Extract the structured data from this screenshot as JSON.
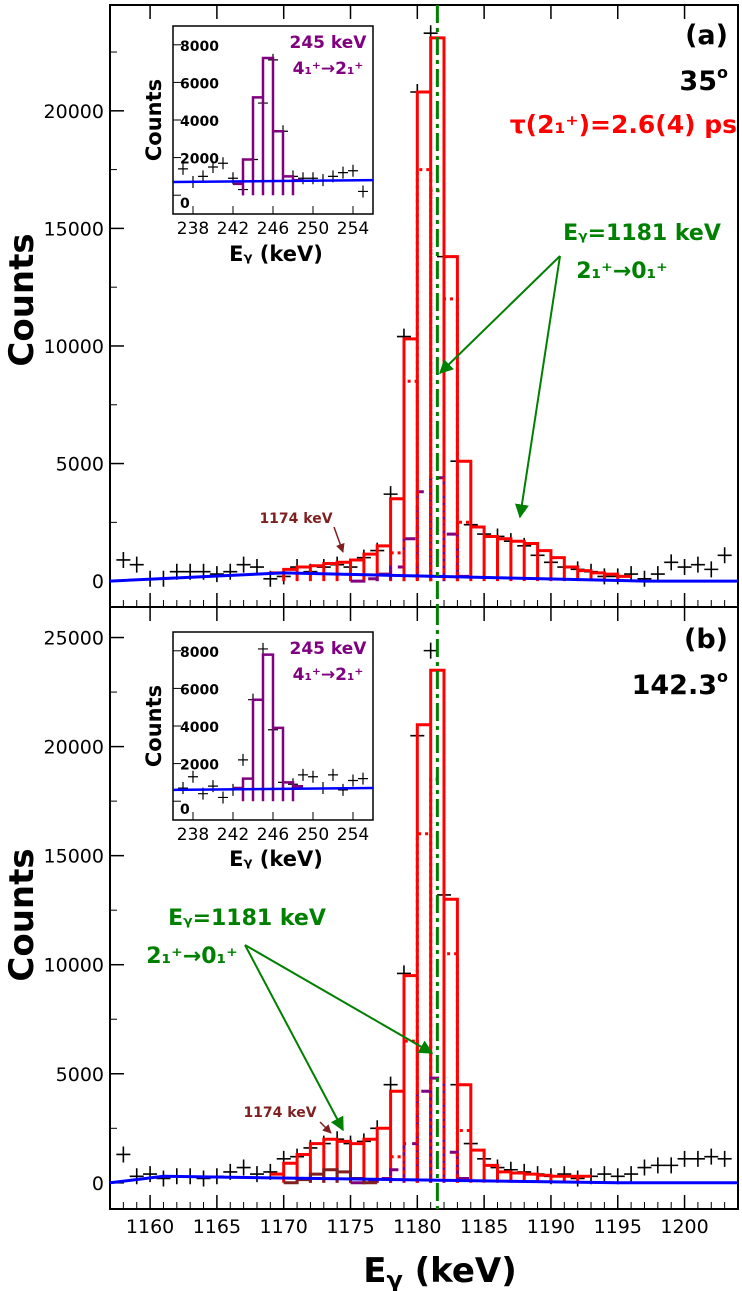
{
  "colors": {
    "data_points": "#000000",
    "total_fit": "#ff0000",
    "peak_component": "#aa0000",
    "full_energy_component": "#800080",
    "background": "#0000ff",
    "centroid_line": "#008000",
    "contaminant": "#7f1f1f"
  },
  "figure": {
    "xlabel_main": "E",
    "xlabel_sub": "γ",
    "xlabel_unit": " (keV)",
    "x_ticks": [
      "1160",
      "1165",
      "1170",
      "1175",
      "1180",
      "1185",
      "1190",
      "1195",
      "1200"
    ]
  },
  "panels": [
    {
      "label": "(a)",
      "angle": "35",
      "lifetime": "τ(2₁⁺)=2.6(4) ps",
      "ylabel": "Counts",
      "y_ticks": [
        "0",
        "5000",
        "10000",
        "15000",
        "20000"
      ],
      "transition_energy": "Eᵧ=1181 keV",
      "transition": "2₁⁺→0₁⁺",
      "contaminant_label": "1174 keV",
      "inset": {
        "ylabel": "Counts",
        "xlabel": "Eᵧ (keV)",
        "y_ticks": [
          "0",
          "2000",
          "4000",
          "6000",
          "8000"
        ],
        "x_ticks": [
          "238",
          "242",
          "246",
          "250",
          "254"
        ],
        "energy": "245 keV",
        "transition": "4₁⁺→2₁⁺"
      }
    },
    {
      "label": "(b)",
      "angle": "142.3",
      "ylabel": "Counts",
      "y_ticks": [
        "0",
        "5000",
        "10000",
        "15000",
        "20000",
        "25000"
      ],
      "transition_energy": "Eᵧ=1181 keV",
      "transition": "2₁⁺→0₁⁺",
      "contaminant_label": "1174 keV",
      "inset": {
        "ylabel": "Counts",
        "xlabel": "Eᵧ (keV)",
        "y_ticks": [
          "0",
          "2000",
          "4000",
          "6000",
          "8000"
        ],
        "x_ticks": [
          "238",
          "242",
          "246",
          "250",
          "254"
        ],
        "energy": "245 keV",
        "transition": "4₁⁺→2₁⁺"
      }
    }
  ],
  "chart_data": [
    {
      "type": "line",
      "panel": "(a)",
      "xlabel": "Eγ (keV)",
      "ylabel": "Counts",
      "xlim": [
        1157,
        1204
      ],
      "ylim": [
        -1100,
        24500
      ],
      "series": [
        {
          "style": "data-points",
          "x": [
            1158,
            1159,
            1160,
            1161,
            1162,
            1163,
            1164,
            1165,
            1166,
            1167,
            1168,
            1169,
            1170,
            1171,
            1172,
            1173,
            1174,
            1175,
            1176,
            1177,
            1178,
            1179,
            1180,
            1181,
            1182,
            1183,
            1184,
            1185,
            1186,
            1187,
            1188,
            1189,
            1190,
            1191,
            1192,
            1193,
            1194,
            1195,
            1196,
            1197,
            1198,
            1199,
            1200,
            1201,
            1202,
            1203
          ],
          "y": [
            900,
            700,
            100,
            100,
            400,
            400,
            400,
            300,
            400,
            700,
            600,
            100,
            200,
            600,
            400,
            600,
            700,
            600,
            1000,
            1300,
            3700,
            10400,
            20800,
            23300,
            13800,
            5100,
            2400,
            2000,
            1900,
            1700,
            1500,
            1100,
            800,
            600,
            500,
            400,
            200,
            200,
            300,
            100,
            300,
            800,
            600,
            700,
            500,
            1100
          ]
        },
        {
          "style": "total-fit",
          "x": [
            1169.5,
            1170.5,
            1171.5,
            1172.5,
            1173.5,
            1174.5,
            1175.5,
            1176.5,
            1177.5,
            1178.5,
            1179.5,
            1180.5,
            1181.5,
            1182.5,
            1183.5,
            1184.5,
            1185.5,
            1186.5,
            1187.5,
            1188.5,
            1189.5,
            1190.5,
            1191.5,
            1192.5,
            1193.5,
            1194.5,
            1195.5
          ],
          "y": [
            350,
            500,
            600,
            650,
            750,
            800,
            900,
            1150,
            1500,
            3500,
            10300,
            20800,
            23100,
            13800,
            5100,
            2300,
            1900,
            1800,
            1700,
            1600,
            1300,
            1000,
            600,
            450,
            350,
            300,
            200
          ]
        },
        {
          "style": "full-energy-dashed",
          "x": [
            1175.5,
            1176.5,
            1177.5,
            1178.5,
            1179.5,
            1180.5,
            1181.5,
            1182.5,
            1183.5
          ],
          "y": [
            0,
            100,
            300,
            600,
            1800,
            3800,
            4400,
            2000,
            200
          ]
        },
        {
          "style": "peak-dotted",
          "x": [
            1178.5,
            1179.5,
            1180.5,
            1181.5,
            1182.5,
            1183.5
          ],
          "y": [
            1200,
            8500,
            17500,
            16600,
            12000,
            2500
          ]
        },
        {
          "style": "background",
          "x": [
            1157,
            1170,
            1197,
            1204
          ],
          "y": [
            0,
            350,
            0,
            0
          ]
        },
        {
          "style": "centroid",
          "x": [
            1181.5
          ]
        }
      ]
    },
    {
      "type": "line",
      "panel": "(b)",
      "xlabel": "Eγ (keV)",
      "ylabel": "Counts",
      "xlim": [
        1157,
        1204
      ],
      "ylim": [
        -1200,
        26400
      ],
      "series": [
        {
          "style": "data-points",
          "x": [
            1158,
            1159,
            1160,
            1161,
            1162,
            1163,
            1164,
            1165,
            1166,
            1167,
            1168,
            1169,
            1170,
            1171,
            1172,
            1173,
            1174,
            1175,
            1176,
            1177,
            1178,
            1179,
            1180,
            1181,
            1182,
            1183,
            1184,
            1185,
            1186,
            1187,
            1188,
            1189,
            1190,
            1191,
            1192,
            1193,
            1194,
            1195,
            1196,
            1197,
            1198,
            1199,
            1200,
            1201,
            1202,
            1203
          ],
          "y": [
            1300,
            300,
            400,
            200,
            300,
            300,
            200,
            300,
            500,
            700,
            400,
            500,
            1100,
            1200,
            1600,
            1800,
            2000,
            1800,
            1900,
            2500,
            4500,
            9600,
            20500,
            24400,
            13200,
            4500,
            1800,
            1100,
            700,
            600,
            500,
            400,
            300,
            400,
            200,
            300,
            400,
            300,
            400,
            700,
            800,
            800,
            1100,
            1100,
            1200,
            1100
          ]
        },
        {
          "style": "total-fit",
          "x": [
            1169.5,
            1170.5,
            1171.5,
            1172.5,
            1173.5,
            1174.5,
            1175.5,
            1176.5,
            1177.5,
            1178.5,
            1179.5,
            1180.5,
            1181.5,
            1182.5,
            1183.5,
            1184.5,
            1185.5,
            1186.5,
            1187.5,
            1188.5,
            1189.5,
            1190.5,
            1191.5,
            1192.5
          ],
          "y": [
            400,
            900,
            1300,
            1800,
            2000,
            1900,
            1800,
            2000,
            2500,
            4200,
            9500,
            21000,
            23500,
            13000,
            4500,
            1500,
            800,
            500,
            450,
            400,
            350,
            300,
            300,
            300
          ]
        },
        {
          "style": "full-energy-dashed",
          "x": [
            1175.5,
            1176.5,
            1177.5,
            1178.5,
            1179.5,
            1180.5,
            1181.5,
            1182.5,
            1183.5
          ],
          "y": [
            0,
            100,
            200,
            600,
            1800,
            4200,
            4800,
            1400,
            200
          ]
        },
        {
          "style": "peak-dotted",
          "x": [
            1178.5,
            1179.5,
            1180.5,
            1181.5,
            1182.5,
            1183.5
          ],
          "y": [
            1200,
            6500,
            16000,
            18500,
            10500,
            2400
          ]
        },
        {
          "style": "contaminant",
          "x": [
            1170.5,
            1171.5,
            1172.5,
            1173.5,
            1174.5,
            1175.5,
            1176.5
          ],
          "y": [
            0,
            150,
            400,
            600,
            500,
            200,
            0
          ]
        },
        {
          "style": "background",
          "x": [
            1157,
            1161,
            1195,
            1204
          ],
          "y": [
            0,
            300,
            0,
            0
          ]
        },
        {
          "style": "centroid",
          "x": [
            1181.5
          ]
        }
      ]
    },
    {
      "type": "line",
      "panel": "(a) inset",
      "xlabel": "Eγ (keV)",
      "ylabel": "Counts",
      "xlim": [
        236,
        256
      ],
      "ylim": [
        -1000,
        9000
      ],
      "series": [
        {
          "style": "data-points",
          "x": [
            237,
            238,
            239,
            240,
            241,
            242,
            243,
            244,
            245,
            246,
            247,
            248,
            249,
            250,
            251,
            252,
            253,
            254,
            255
          ],
          "y": [
            1400,
            700,
            1000,
            1500,
            1700,
            900,
            300,
            1900,
            4900,
            7200,
            3400,
            1000,
            900,
            900,
            800,
            1000,
            1200,
            1300,
            200
          ]
        },
        {
          "style": "total-fit",
          "x": [
            242.5,
            243.5,
            244.5,
            245.5,
            246.5,
            247.5,
            248.5
          ],
          "y": [
            600,
            1900,
            5200,
            7300,
            3400,
            1000,
            800
          ]
        },
        {
          "style": "background",
          "x": [
            236,
            256
          ],
          "y": [
            700,
            800
          ]
        }
      ]
    },
    {
      "type": "line",
      "panel": "(b) inset",
      "xlabel": "Eγ (keV)",
      "ylabel": "Counts",
      "xlim": [
        236,
        256
      ],
      "ylim": [
        -1000,
        9000
      ],
      "series": [
        {
          "style": "data-points",
          "x": [
            237,
            238,
            239,
            240,
            241,
            242,
            243,
            244,
            245,
            246,
            247,
            248,
            249,
            250,
            251,
            252,
            253,
            254,
            255
          ],
          "y": [
            700,
            1300,
            400,
            800,
            200,
            600,
            2200,
            5400,
            8100,
            3800,
            1000,
            900,
            1400,
            1300,
            700,
            1400,
            600,
            1100,
            1200
          ]
        },
        {
          "style": "total-fit",
          "x": [
            242.5,
            243.5,
            244.5,
            245.5,
            246.5,
            247.5,
            248.5
          ],
          "y": [
            700,
            1200,
            5400,
            7800,
            3900,
            1000,
            800
          ]
        },
        {
          "style": "background",
          "x": [
            236,
            256
          ],
          "y": [
            600,
            700
          ]
        }
      ]
    }
  ]
}
